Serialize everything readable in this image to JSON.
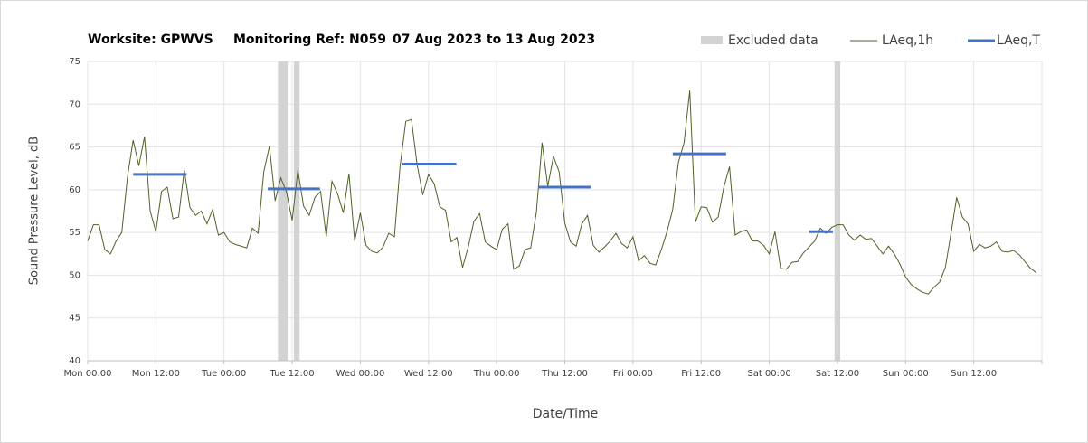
{
  "chart_data": {
    "type": "line",
    "title": [
      "Worksite: GPWVS",
      "Monitoring Ref: N059",
      "07 Aug 2023 to 13 Aug 2023"
    ],
    "x_label": "Date/Time",
    "y_label": "Sound Pressure Level, dB",
    "xlim": [
      0,
      168
    ],
    "ylim": [
      40,
      75
    ],
    "xticks": [
      {
        "value": 0,
        "label": "Mon 00:00"
      },
      {
        "value": 12,
        "label": "Mon 12:00"
      },
      {
        "value": 24,
        "label": "Tue 00:00"
      },
      {
        "value": 36,
        "label": "Tue 12:00"
      },
      {
        "value": 48,
        "label": "Wed 00:00"
      },
      {
        "value": 60,
        "label": "Wed 12:00"
      },
      {
        "value": 72,
        "label": "Thu 00:00"
      },
      {
        "value": 84,
        "label": "Thu 12:00"
      },
      {
        "value": 96,
        "label": "Fri 00:00"
      },
      {
        "value": 108,
        "label": "Fri 12:00"
      },
      {
        "value": 120,
        "label": "Sat 00:00"
      },
      {
        "value": 132,
        "label": "Sat 12:00"
      },
      {
        "value": 144,
        "label": "Sun 00:00"
      },
      {
        "value": 156,
        "label": "Sun 12:00"
      },
      {
        "value": 168,
        "label": ""
      }
    ],
    "yticks": [
      40,
      45,
      50,
      55,
      60,
      65,
      70,
      75
    ],
    "grid": true,
    "excluded": {
      "name": "Excluded data",
      "color": "#d3d3d3",
      "ranges": [
        {
          "start": 33.5,
          "end": 35.2
        },
        {
          "start": 36.3,
          "end": 37.3
        },
        {
          "start": 131.5,
          "end": 132.5
        }
      ]
    },
    "series": [
      {
        "name": "LAeq,1h",
        "color": "#4f6228",
        "x": [
          0,
          1,
          2,
          3,
          4,
          5,
          6,
          7,
          8,
          9,
          10,
          11,
          12,
          13,
          14,
          15,
          16,
          17,
          18,
          19,
          20,
          21,
          22,
          23,
          24,
          25,
          26,
          27,
          28,
          29,
          30,
          31,
          32,
          33,
          34,
          35,
          36,
          37,
          38,
          39,
          40,
          41,
          42,
          43,
          44,
          45,
          46,
          47,
          48,
          49,
          50,
          51,
          52,
          53,
          54,
          55,
          56,
          57,
          58,
          59,
          60,
          61,
          62,
          63,
          64,
          65,
          66,
          67,
          68,
          69,
          70,
          71,
          72,
          73,
          74,
          75,
          76,
          77,
          78,
          79,
          80,
          81,
          82,
          83,
          84,
          85,
          86,
          87,
          88,
          89,
          90,
          91,
          92,
          93,
          94,
          95,
          96,
          97,
          98,
          99,
          100,
          101,
          102,
          103,
          104,
          105,
          106,
          107,
          108,
          109,
          110,
          111,
          112,
          113,
          114,
          115,
          116,
          117,
          118,
          119,
          120,
          121,
          122,
          123,
          124,
          125,
          126,
          127,
          128,
          129,
          130,
          131,
          132,
          133,
          134,
          135,
          136,
          137,
          138,
          139,
          140,
          141,
          142,
          143,
          144,
          145,
          146,
          147,
          148,
          149,
          150,
          151,
          152,
          153,
          154,
          155,
          156,
          157,
          158,
          159,
          160,
          161,
          162,
          163,
          164,
          165,
          166,
          167
        ],
        "values": [
          54,
          55.9,
          55.9,
          53,
          52.5,
          54,
          55,
          61.5,
          65.8,
          62.8,
          66.2,
          57.5,
          55.1,
          59.8,
          60.3,
          56.6,
          56.8,
          62.3,
          57.9,
          57,
          57.5,
          56,
          57.7,
          54.7,
          55,
          53.9,
          53.6,
          53.4,
          53.2,
          55.5,
          54.9,
          62.1,
          65.1,
          58.7,
          61.4,
          59.7,
          56.4,
          62.3,
          58.1,
          57,
          59.1,
          59.8,
          54.5,
          61,
          59.5,
          57.3,
          61.9,
          54,
          57.3,
          53.5,
          52.8,
          52.6,
          53.3,
          54.9,
          54.5,
          62.8,
          68,
          68.2,
          62.9,
          59.4,
          61.8,
          60.7,
          58,
          57.6,
          53.9,
          54.4,
          50.9,
          53.3,
          56.3,
          57.2,
          53.9,
          53.4,
          53,
          55.4,
          56,
          50.7,
          51.1,
          53,
          53.2,
          57.4,
          65.5,
          60.4,
          63.9,
          62.1,
          56.1,
          53.9,
          53.4,
          56,
          57,
          53.5,
          52.7,
          53.3,
          54,
          54.9,
          53.7,
          53.2,
          54.5,
          51.7,
          52.3,
          51.4,
          51.2,
          53,
          55.1,
          57.7,
          63.2,
          65.5,
          71.6,
          56.2,
          58,
          57.9,
          56.2,
          56.8,
          60.3,
          62.7,
          54.7,
          55.1,
          55.3,
          54,
          54,
          53.5,
          52.5,
          55.1,
          50.8,
          50.7,
          51.5,
          51.6,
          52.6,
          53.3,
          54,
          55.5,
          54.9,
          55.6,
          55.9,
          55.9,
          54.7,
          54.1,
          54.7,
          54.2,
          54.3,
          53.4,
          52.5,
          53.4,
          52.5,
          51.3,
          49.8,
          48.9,
          48.4,
          48,
          47.8,
          48.6,
          49.2,
          50.9,
          54.9,
          59.1,
          56.8,
          56,
          52.8,
          53.6,
          53.2,
          53.4,
          53.9,
          52.8,
          52.7,
          52.9,
          52.4,
          51.6,
          50.8,
          50.3
        ]
      },
      {
        "name": "LAeq,T",
        "color": "#4472c4",
        "segments": [
          {
            "start": 8,
            "end": 17.4,
            "value": 61.8
          },
          {
            "start": 31.7,
            "end": 40.9,
            "value": 60.1
          },
          {
            "start": 55.4,
            "end": 64.9,
            "value": 63
          },
          {
            "start": 79.3,
            "end": 88.6,
            "value": 60.3
          },
          {
            "start": 103,
            "end": 112.4,
            "value": 64.2
          },
          {
            "start": 127,
            "end": 131.2,
            "value": 55.1
          }
        ]
      }
    ]
  }
}
